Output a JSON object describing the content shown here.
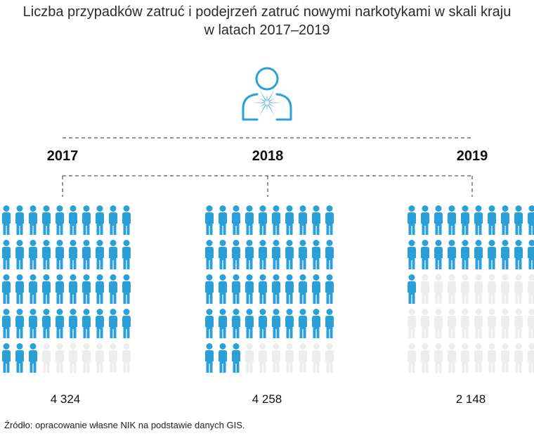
{
  "title_line1": "Liczba przypadków zatruć i podejrzeń zatruć nowymi narkotykami w skali kraju",
  "title_line2": "w latach 2017–2019",
  "source": "Źródło: opracowanie własne NIK na podstawie danych GIS.",
  "icon_color": "#2a9fd8",
  "empty_color": "#ededed",
  "chart_data": {
    "type": "pictogram",
    "categories": [
      "2017",
      "2018",
      "2019"
    ],
    "values": [
      4324,
      4258,
      2148
    ],
    "value_labels": [
      "4 324",
      "4 258",
      "2 148"
    ],
    "filled_icons": [
      43,
      43,
      21
    ],
    "total_icons": 50,
    "icons_per_row": 10
  }
}
